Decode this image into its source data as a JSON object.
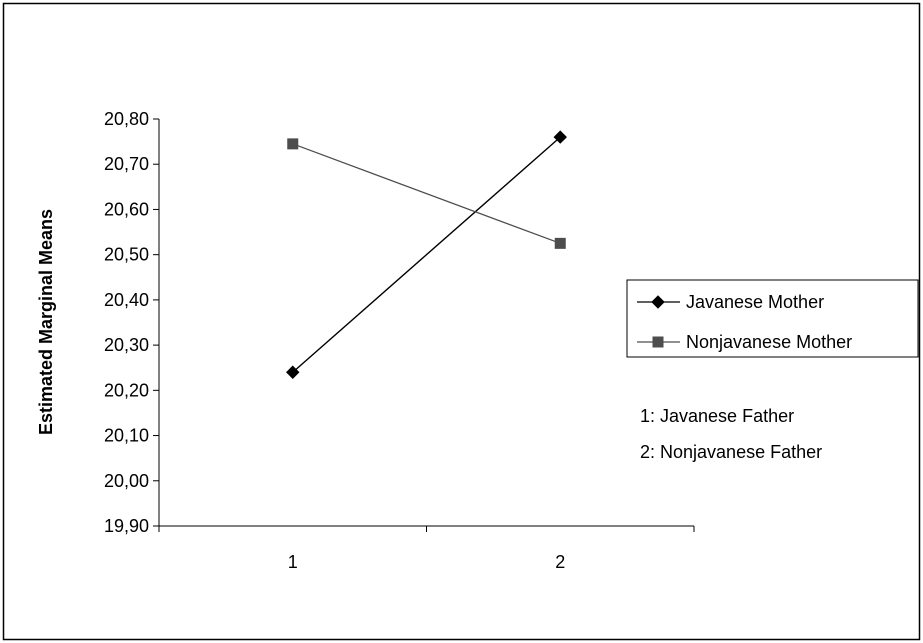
{
  "chart_data": {
    "type": "line",
    "categories": [
      "1",
      "2"
    ],
    "series": [
      {
        "name": "Javanese Mother",
        "values": [
          20.24,
          20.76
        ],
        "color": "#000000",
        "marker": "diamond"
      },
      {
        "name": "Nonjavanese Mother",
        "values": [
          20.745,
          20.525
        ],
        "color": "#4d4d4d",
        "marker": "square"
      }
    ],
    "title": "",
    "xlabel": "",
    "ylabel": "Estimated Marginal Means",
    "ylim": [
      19.9,
      20.8
    ],
    "yticks": [
      "19,90",
      "20,00",
      "20,10",
      "20,20",
      "20,30",
      "20,40",
      "20,50",
      "20,60",
      "20,70",
      "20,80"
    ],
    "grid": false,
    "legend_placement": "right",
    "annotations": [
      "1: Javanese Father",
      "2: Nonjavanese Father"
    ]
  }
}
